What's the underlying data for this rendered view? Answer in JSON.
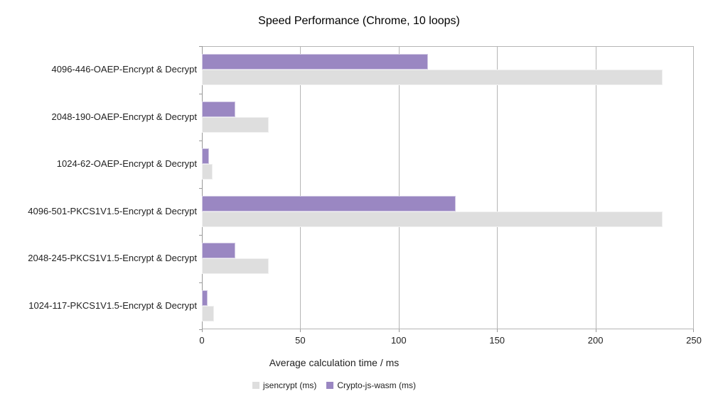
{
  "chart_data": {
    "type": "bar",
    "orientation": "horizontal",
    "title": "Speed Performance (Chrome, 10 loops)",
    "xlabel": "Average calculation time / ms",
    "xlim": [
      0,
      250
    ],
    "xticks": [
      0,
      50,
      100,
      150,
      200,
      250
    ],
    "grid": true,
    "legend_position": "bottom",
    "categories": [
      "4096-446-OAEP-Encrypt & Decrypt",
      "2048-190-OAEP-Encrypt & Decrypt",
      "1024-62-OAEP-Encrypt & Decrypt",
      "4096-501-PKCS1V1.5-Encrypt & Decrypt",
      "2048-245-PKCS1V1.5-Encrypt & Decrypt",
      "1024-117-PKCS1V1.5-Encrypt & Decrypt"
    ],
    "series": [
      {
        "name": "jsencrypt (ms)",
        "color": "#dedede",
        "values": [
          234,
          34,
          5.5,
          234,
          34,
          6
        ]
      },
      {
        "name": "Crypto-js-wasm (ms)",
        "color": "#9a87c2",
        "values": [
          115,
          17,
          3.5,
          129,
          17,
          3
        ]
      }
    ],
    "colors": {
      "jsencrypt": "#dedede",
      "crypto_js_wasm": "#9a87c2",
      "gridline": "#b5b5b5",
      "axis": "#9a9a9a",
      "text": "#222222"
    }
  }
}
